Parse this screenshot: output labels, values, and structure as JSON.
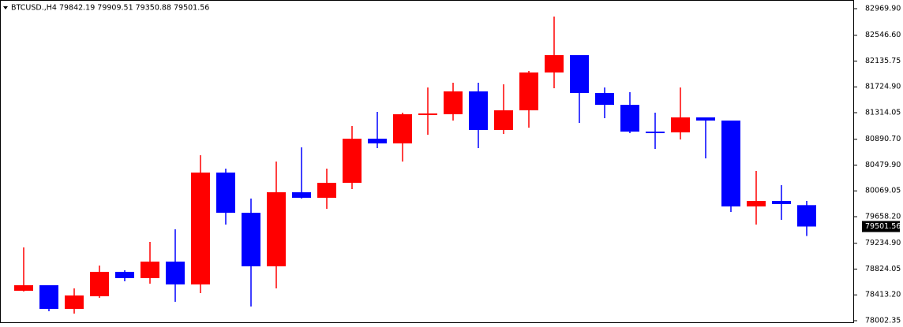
{
  "chart_data": {
    "type": "candlestick",
    "title": "BTCUSD.,H4  79842.19 79909.51 79350.88 79501.56",
    "up_color": "#ff0000",
    "down_color": "#0000ff",
    "ylim": [
      77964.7,
      83082.8
    ],
    "yticks": [
      {
        "value": 82969.9,
        "label": "82969.90"
      },
      {
        "value": 82546.6,
        "label": "82546.60"
      },
      {
        "value": 82135.75,
        "label": "82135.75"
      },
      {
        "value": 81724.9,
        "label": "81724.90"
      },
      {
        "value": 81314.05,
        "label": "81314.05"
      },
      {
        "value": 80890.7,
        "label": "80890.70"
      },
      {
        "value": 80479.9,
        "label": "80479.90"
      },
      {
        "value": 80069.05,
        "label": "80069.05"
      },
      {
        "value": 79658.2,
        "label": "79658.20"
      },
      {
        "value": 79234.9,
        "label": "79234.90"
      },
      {
        "value": 78824.05,
        "label": "78824.05"
      },
      {
        "value": 78413.2,
        "label": "78413.20"
      },
      {
        "value": 78002.35,
        "label": "78002.35"
      }
    ],
    "last_price": {
      "value": 79501.56,
      "label": "79501.56"
    },
    "candles": [
      {
        "open": 78479.1,
        "high": 79169.1,
        "low": 78466.6,
        "close": 78567.0
      },
      {
        "open": 78567.0,
        "high": 78567.0,
        "low": 78153.0,
        "close": 78190.6
      },
      {
        "open": 78190.6,
        "high": 78516.8,
        "low": 78115.4,
        "close": 78403.9
      },
      {
        "open": 78391.3,
        "high": 78880.6,
        "low": 78366.3,
        "close": 78780.2
      },
      {
        "open": 78780.2,
        "high": 78805.3,
        "low": 78629.7,
        "close": 78679.9
      },
      {
        "open": 78679.9,
        "high": 79256.9,
        "low": 78592.0,
        "close": 78943.3
      },
      {
        "open": 78943.3,
        "high": 79457.6,
        "low": 78303.5,
        "close": 78579.5
      },
      {
        "open": 78579.5,
        "high": 80636.7,
        "low": 78441.5,
        "close": 80360.7
      },
      {
        "open": 80360.7,
        "high": 80423.5,
        "low": 79532.8,
        "close": 79721.0
      },
      {
        "open": 79721.0,
        "high": 79946.8,
        "low": 78228.3,
        "close": 78868.0
      },
      {
        "open": 78868.0,
        "high": 80536.4,
        "low": 78516.8,
        "close": 80047.1
      },
      {
        "open": 80047.1,
        "high": 80762.2,
        "low": 79946.8,
        "close": 79959.3
      },
      {
        "open": 79959.3,
        "high": 80423.5,
        "low": 79783.7,
        "close": 80197.7
      },
      {
        "open": 80197.7,
        "high": 81100.8,
        "low": 80097.3,
        "close": 80900.1
      },
      {
        "open": 80900.1,
        "high": 81326.6,
        "low": 80749.6,
        "close": 80824.9
      },
      {
        "open": 80824.9,
        "high": 81314.1,
        "low": 80536.4,
        "close": 81289.0
      },
      {
        "open": 81289.0,
        "high": 81715.5,
        "low": 80962.9,
        "close": 81301.5
      },
      {
        "open": 81289.0,
        "high": 81790.8,
        "low": 81188.7,
        "close": 81652.8
      },
      {
        "open": 81652.8,
        "high": 81790.8,
        "low": 80749.6,
        "close": 81038.1
      },
      {
        "open": 81038.1,
        "high": 81765.7,
        "low": 80975.4,
        "close": 81351.7
      },
      {
        "open": 81351.7,
        "high": 81978.9,
        "low": 81075.8,
        "close": 81953.8
      },
      {
        "open": 81953.8,
        "high": 82844.5,
        "low": 81703.0,
        "close": 82229.8
      },
      {
        "open": 82229.8,
        "high": 82229.8,
        "low": 81151.0,
        "close": 81627.7
      },
      {
        "open": 81627.7,
        "high": 81715.5,
        "low": 81226.3,
        "close": 81439.5
      },
      {
        "open": 81439.5,
        "high": 81640.2,
        "low": 80987.9,
        "close": 81013.0
      },
      {
        "open": 81013.0,
        "high": 81314.1,
        "low": 80737.1,
        "close": 80987.9
      },
      {
        "open": 81000.5,
        "high": 81715.5,
        "low": 80887.6,
        "close": 81238.8
      },
      {
        "open": 81238.8,
        "high": 81238.8,
        "low": 80586.5,
        "close": 81188.7
      },
      {
        "open": 81188.7,
        "high": 81188.7,
        "low": 79733.5,
        "close": 79821.4
      },
      {
        "open": 79821.4,
        "high": 80385.8,
        "low": 79532.8,
        "close": 79909.2
      },
      {
        "open": 79909.2,
        "high": 80160.0,
        "low": 79608.1,
        "close": 79859.0
      },
      {
        "open": 79842.19,
        "high": 79909.51,
        "low": 79350.88,
        "close": 79501.56
      }
    ]
  }
}
